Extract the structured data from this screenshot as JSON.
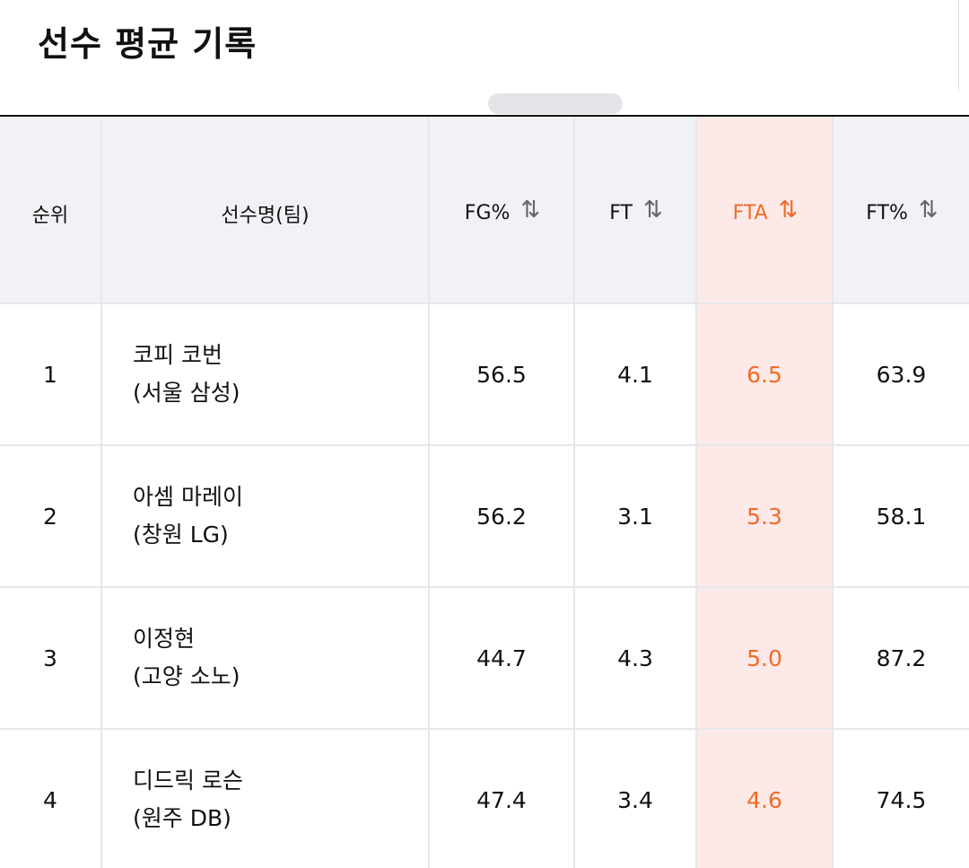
{
  "page": {
    "title": "선수 평균 기록"
  },
  "table": {
    "columns": [
      {
        "key": "rank",
        "label": "순위",
        "sortable": false
      },
      {
        "key": "player",
        "label": "선수명(팀)",
        "sortable": false
      },
      {
        "key": "fg_pct",
        "label": "FG%",
        "sortable": true,
        "sort_icon": "sort-arrows-icon"
      },
      {
        "key": "ft",
        "label": "FT",
        "sortable": true,
        "sort_icon": "sort-arrows-icon"
      },
      {
        "key": "fta",
        "label": "FTA",
        "sortable": true,
        "active": true,
        "sort_icon": "sort-arrows-icon"
      },
      {
        "key": "ft_pct",
        "label": "FT%",
        "sortable": true,
        "sort_icon": "sort-arrows-icon"
      }
    ],
    "sort_icon_glyph": "⇅",
    "rows": [
      {
        "rank": "1",
        "name": "코피 코번",
        "team": "(서울 삼성)",
        "fg_pct": "56.5",
        "ft": "4.1",
        "fta": "6.5",
        "ft_pct": "63.9"
      },
      {
        "rank": "2",
        "name": "아셈 마레이",
        "team": "(창원 LG)",
        "fg_pct": "56.2",
        "ft": "3.1",
        "fta": "5.3",
        "ft_pct": "58.1"
      },
      {
        "rank": "3",
        "name": "이정현",
        "team": "(고양 소노)",
        "fg_pct": "44.7",
        "ft": "4.3",
        "fta": "5.0",
        "ft_pct": "87.2"
      },
      {
        "rank": "4",
        "name": "디드릭 로슨",
        "team": "(원주 DB)",
        "fg_pct": "47.4",
        "ft": "3.4",
        "fta": "4.6",
        "ft_pct": "74.5"
      }
    ]
  },
  "colors": {
    "accent": "#ef6b2b",
    "active_bg": "#fdeae8",
    "header_bg": "#f1f2f6",
    "grid": "#e7e7eb"
  }
}
